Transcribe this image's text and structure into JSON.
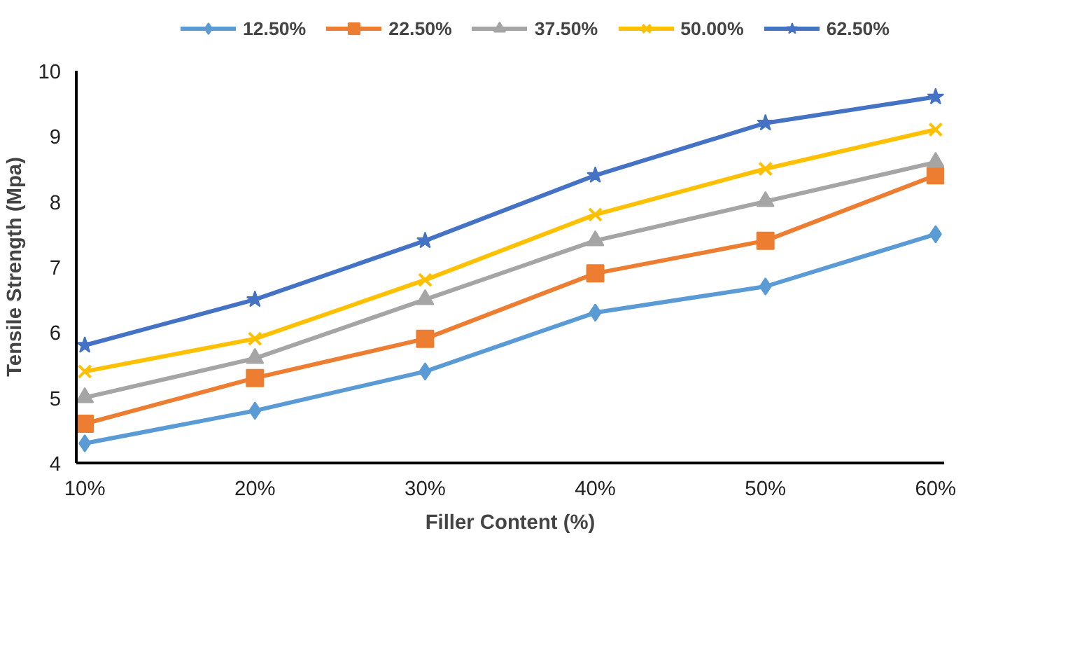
{
  "chart_data": {
    "type": "line",
    "xlabel": "Filler Content (%)",
    "ylabel": "Tensile Strength (Mpa)",
    "categories": [
      "10%",
      "20%",
      "30%",
      "40%",
      "50%",
      "60%"
    ],
    "ylim": [
      4,
      10
    ],
    "yticks": [
      4,
      5,
      6,
      7,
      8,
      9,
      10
    ],
    "grid": false,
    "legend": "top",
    "series": [
      {
        "name": "12.50%",
        "color": "#5b9bd5",
        "marker": "diamond",
        "values": [
          4.3,
          4.8,
          5.4,
          6.3,
          6.7,
          7.5
        ]
      },
      {
        "name": "22.50%",
        "color": "#ed7d31",
        "marker": "square",
        "values": [
          4.6,
          5.3,
          5.9,
          6.9,
          7.4,
          8.4
        ]
      },
      {
        "name": "37.50%",
        "color": "#a5a5a5",
        "marker": "triangle",
        "values": [
          5.0,
          5.6,
          6.5,
          7.4,
          8.0,
          8.6
        ]
      },
      {
        "name": "50.00%",
        "color": "#ffc000",
        "marker": "cross",
        "values": [
          5.4,
          5.9,
          6.8,
          7.8,
          8.5,
          9.1
        ]
      },
      {
        "name": "62.50%",
        "color": "#4472c4",
        "marker": "star",
        "values": [
          5.8,
          6.5,
          7.4,
          8.4,
          9.2,
          9.6
        ]
      }
    ]
  }
}
